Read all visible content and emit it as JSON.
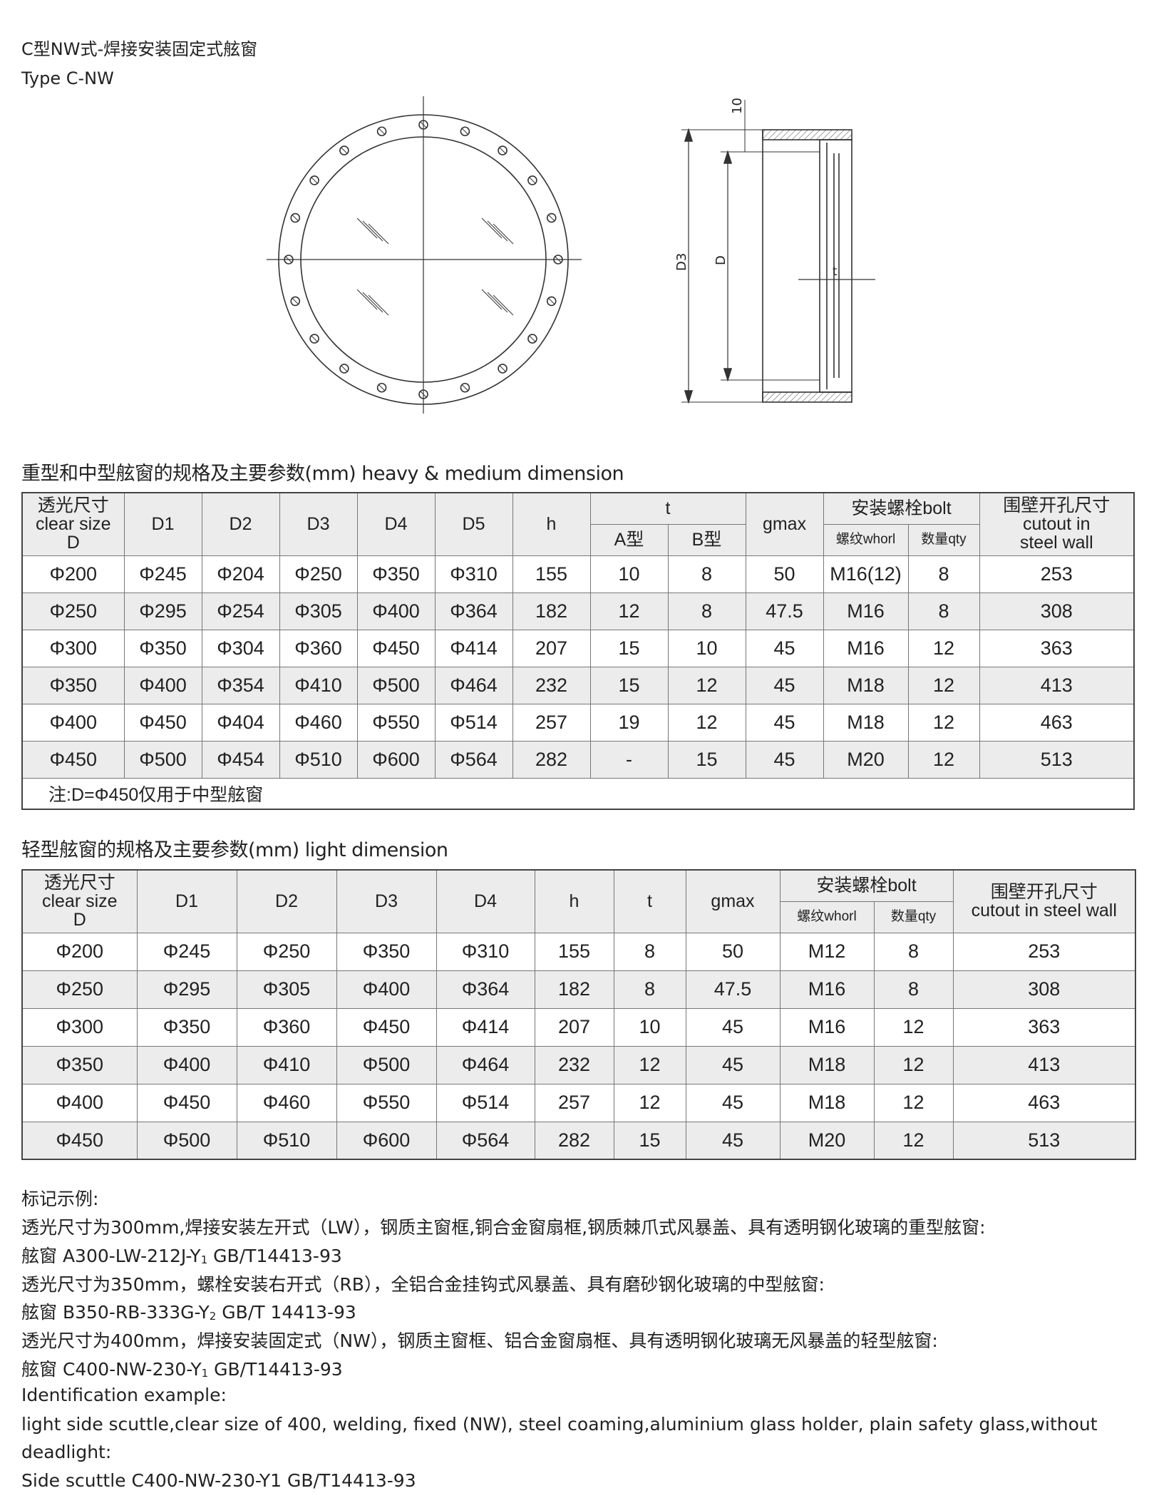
{
  "title_cn": "C型NW式-焊接安装固定式舷窗",
  "title_en": "Type C-NW",
  "drawing": {
    "label_10": "10",
    "label_D3": "D3",
    "label_D": "D",
    "label_t": "t"
  },
  "heavy": {
    "heading": "重型和中型舷窗的规格及主要参数(mm)  heavy & medium dimension",
    "headers": {
      "clear_cn": "透光尺寸",
      "clear_en": "clear size",
      "clear_d": "D",
      "D1": "D1",
      "D2": "D2",
      "D3": "D3",
      "D4": "D4",
      "D5": "D5",
      "h": "h",
      "t": "t",
      "tA": "A型",
      "tB": "B型",
      "gmax": "gmax",
      "bolt": "安装螺栓bolt",
      "whorl": "螺纹whorl",
      "qty": "数量qty",
      "cutout_cn": "围壁开孔尺寸",
      "cutout_en1": "cutout in",
      "cutout_en2": "steel wall"
    },
    "rows": [
      [
        "Φ200",
        "Φ245",
        "Φ204",
        "Φ250",
        "Φ350",
        "Φ310",
        "155",
        "10",
        "8",
        "50",
        "M16(12)",
        "8",
        "253"
      ],
      [
        "Φ250",
        "Φ295",
        "Φ254",
        "Φ305",
        "Φ400",
        "Φ364",
        "182",
        "12",
        "8",
        "47.5",
        "M16",
        "8",
        "308"
      ],
      [
        "Φ300",
        "Φ350",
        "Φ304",
        "Φ360",
        "Φ450",
        "Φ414",
        "207",
        "15",
        "10",
        "45",
        "M16",
        "12",
        "363"
      ],
      [
        "Φ350",
        "Φ400",
        "Φ354",
        "Φ410",
        "Φ500",
        "Φ464",
        "232",
        "15",
        "12",
        "45",
        "M18",
        "12",
        "413"
      ],
      [
        "Φ400",
        "Φ450",
        "Φ404",
        "Φ460",
        "Φ550",
        "Φ514",
        "257",
        "19",
        "12",
        "45",
        "M18",
        "12",
        "463"
      ],
      [
        "Φ450",
        "Φ500",
        "Φ454",
        "Φ510",
        "Φ600",
        "Φ564",
        "282",
        "-",
        "15",
        "45",
        "M20",
        "12",
        "513"
      ]
    ],
    "note": "注:D=Φ450仅用于中型舷窗"
  },
  "light": {
    "heading": "轻型舷窗的规格及主要参数(mm)  light dimension",
    "headers": {
      "clear_cn": "透光尺寸",
      "clear_en": "clear size",
      "clear_d": "D",
      "D1": "D1",
      "D2": "D2",
      "D3": "D3",
      "D4": "D4",
      "h": "h",
      "t": "t",
      "gmax": "gmax",
      "bolt": "安装螺栓bolt",
      "whorl": "螺纹whorl",
      "qty": "数量qty",
      "cutout_cn": "围壁开孔尺寸",
      "cutout_en": "cutout in steel wall"
    },
    "rows": [
      [
        "Φ200",
        "Φ245",
        "Φ250",
        "Φ350",
        "Φ310",
        "155",
        "8",
        "50",
        "M12",
        "8",
        "253"
      ],
      [
        "Φ250",
        "Φ295",
        "Φ305",
        "Φ400",
        "Φ364",
        "182",
        "8",
        "47.5",
        "M16",
        "8",
        "308"
      ],
      [
        "Φ300",
        "Φ350",
        "Φ360",
        "Φ450",
        "Φ414",
        "207",
        "10",
        "45",
        "M16",
        "12",
        "363"
      ],
      [
        "Φ350",
        "Φ400",
        "Φ410",
        "Φ500",
        "Φ464",
        "232",
        "12",
        "45",
        "M18",
        "12",
        "413"
      ],
      [
        "Φ400",
        "Φ450",
        "Φ460",
        "Φ550",
        "Φ514",
        "257",
        "12",
        "45",
        "M18",
        "12",
        "463"
      ],
      [
        "Φ450",
        "Φ500",
        "Φ510",
        "Φ600",
        "Φ564",
        "282",
        "15",
        "45",
        "M20",
        "12",
        "513"
      ]
    ]
  },
  "example": {
    "label_cn": "标记示例:",
    "line1": "透光尺寸为300mm,焊接安装左开式（LW），钢质主窗框,铜合金窗扇框,钢质棘爪式风暴盖、具有透明钢化玻璃的重型舷窗:",
    "code1": "舷窗 A300-LW-212J-Y",
    "code1_sub": "1",
    "code1_std": " GB/T14413-93",
    "line2": "透光尺寸为350mm，螺栓安装右开式（RB），全铝合金挂钩式风暴盖、具有磨砂钢化玻璃的中型舷窗:",
    "code2": "舷窗 B350-RB-333G-Y",
    "code2_sub": "2",
    "code2_std": " GB/T  14413-93",
    "line3": "透光尺寸为400mm，焊接安装固定式（NW），钢质主窗框、铝合金窗扇框、具有透明钢化玻璃无风暴盖的轻型舷窗:",
    "code3": "舷窗 C400-NW-230-Y",
    "code3_sub": "1",
    "code3_std": " GB/T14413-93",
    "label_en": "Identification example:",
    "en_line1": "light side scuttle,clear size of 400, welding, fixed (NW), steel coaming,aluminium glass holder, plain safety glass,without",
    "en_line2": "deadlight:",
    "en_code": "Side scuttle C400-NW-230-Y1 GB/T14413-93"
  }
}
